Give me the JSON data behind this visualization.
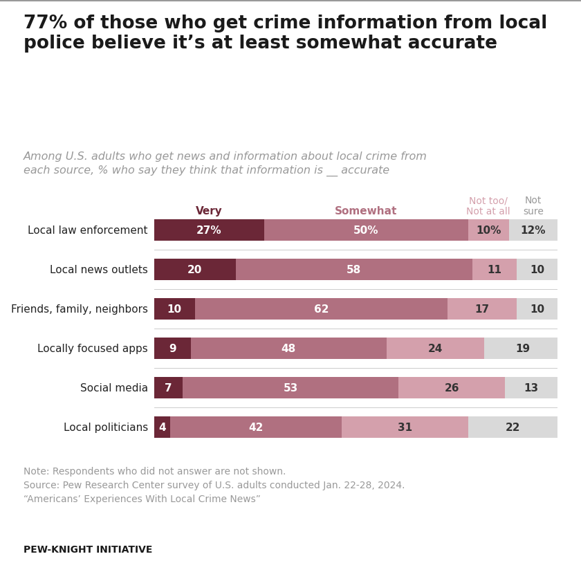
{
  "title": "77% of those who get crime information from local\npolice believe it’s at least somewhat accurate",
  "subtitle": "Among U.S. adults who get news and information about local crime from\neach source, % who say they think that information is __ accurate",
  "categories": [
    "Local law enforcement",
    "Local news outlets",
    "Friends, family, neighbors",
    "Locally focused apps",
    "Social media",
    "Local politicians"
  ],
  "very": [
    27,
    20,
    10,
    9,
    7,
    4
  ],
  "somewhat": [
    50,
    58,
    62,
    48,
    53,
    42
  ],
  "not_too": [
    10,
    11,
    17,
    24,
    26,
    31
  ],
  "not_sure": [
    12,
    10,
    10,
    19,
    13,
    22
  ],
  "color_very": "#6b2737",
  "color_somewhat": "#b07080",
  "color_not_too": "#d4a0ac",
  "color_not_sure": "#d9d9d9",
  "header_very": "Very",
  "header_somewhat": "Somewhat",
  "header_not_too": "Not too/\nNot at all",
  "header_not_sure": "Not\nsure",
  "note": "Note: Respondents who did not answer are not shown.\nSource: Pew Research Center survey of U.S. adults conducted Jan. 22-28, 2024.\n“Americans’ Experiences With Local Crime News”",
  "footer": "PEW-KNIGHT INITIATIVE",
  "bg_color": "#ffffff",
  "bar_height": 0.55,
  "title_color": "#1a1a1a",
  "subtitle_color": "#999999",
  "label_color_light": "#333333",
  "header_very_color": "#6b2737",
  "header_somewhat_color": "#b07080",
  "header_nottoo_color": "#d4a0ac",
  "header_notsure_color": "#999999",
  "note_color": "#999999",
  "separator_color": "#cccccc",
  "top_border_color": "#999999"
}
